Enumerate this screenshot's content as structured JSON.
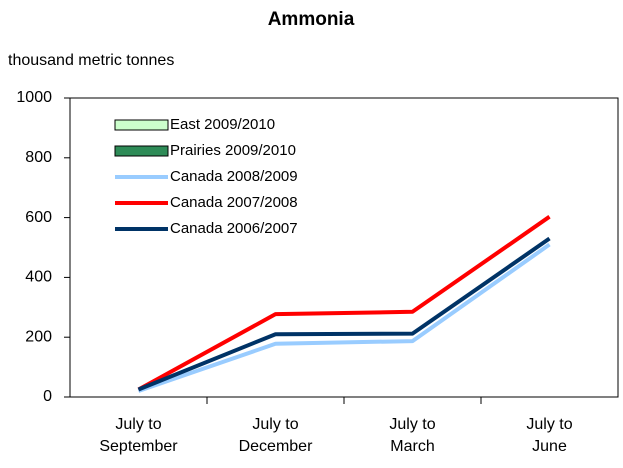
{
  "chart_data": {
    "type": "line",
    "title": "Ammonia",
    "y_label": "thousand metric tonnes",
    "categories": [
      "July to\nSeptember",
      "July to\nDecember",
      "July to\nMarch",
      "July to\nJune"
    ],
    "series": [
      {
        "name": "East 2009/2010",
        "type": "bar",
        "color": "#ccffcc",
        "values": [
          null,
          null,
          null,
          null
        ]
      },
      {
        "name": "Prairies 2009/2010",
        "type": "bar",
        "color": "#2e8b57",
        "values": [
          null,
          null,
          null,
          null
        ]
      },
      {
        "name": "Canada 2008/2009",
        "type": "line",
        "color": "#99ccff",
        "values": [
          20,
          178,
          187,
          510
        ]
      },
      {
        "name": "Canada 2007/2008",
        "type": "line",
        "color": "#ff0000",
        "values": [
          25,
          277,
          285,
          603
        ]
      },
      {
        "name": "Canada 2006/2007",
        "type": "line",
        "color": "#003366",
        "values": [
          25,
          210,
          212,
          530
        ]
      }
    ],
    "ylim": [
      0,
      1000
    ],
    "yticks": [
      0,
      200,
      400,
      600,
      800,
      1000
    ],
    "grid": false,
    "legend": "upper left"
  }
}
